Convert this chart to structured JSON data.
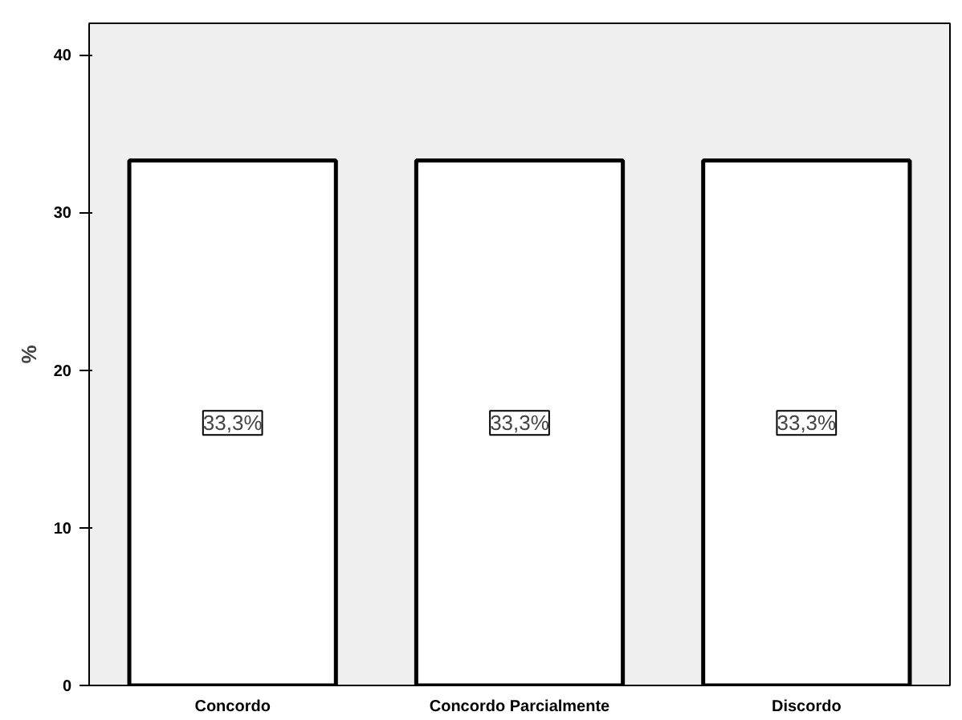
{
  "chart_data": {
    "type": "bar",
    "ylabel": "%",
    "categories": [
      "Concordo",
      "Concordo Parcialmente",
      "Discordo"
    ],
    "values": [
      33.3,
      33.3,
      33.3
    ],
    "color": "#ffffff",
    "value_labels": [
      "33,3%",
      "33,3%",
      "33,3%"
    ],
    "ylim": [
      0,
      42
    ],
    "yticks": [
      0,
      10,
      20,
      30,
      40
    ],
    "grid": false
  }
}
